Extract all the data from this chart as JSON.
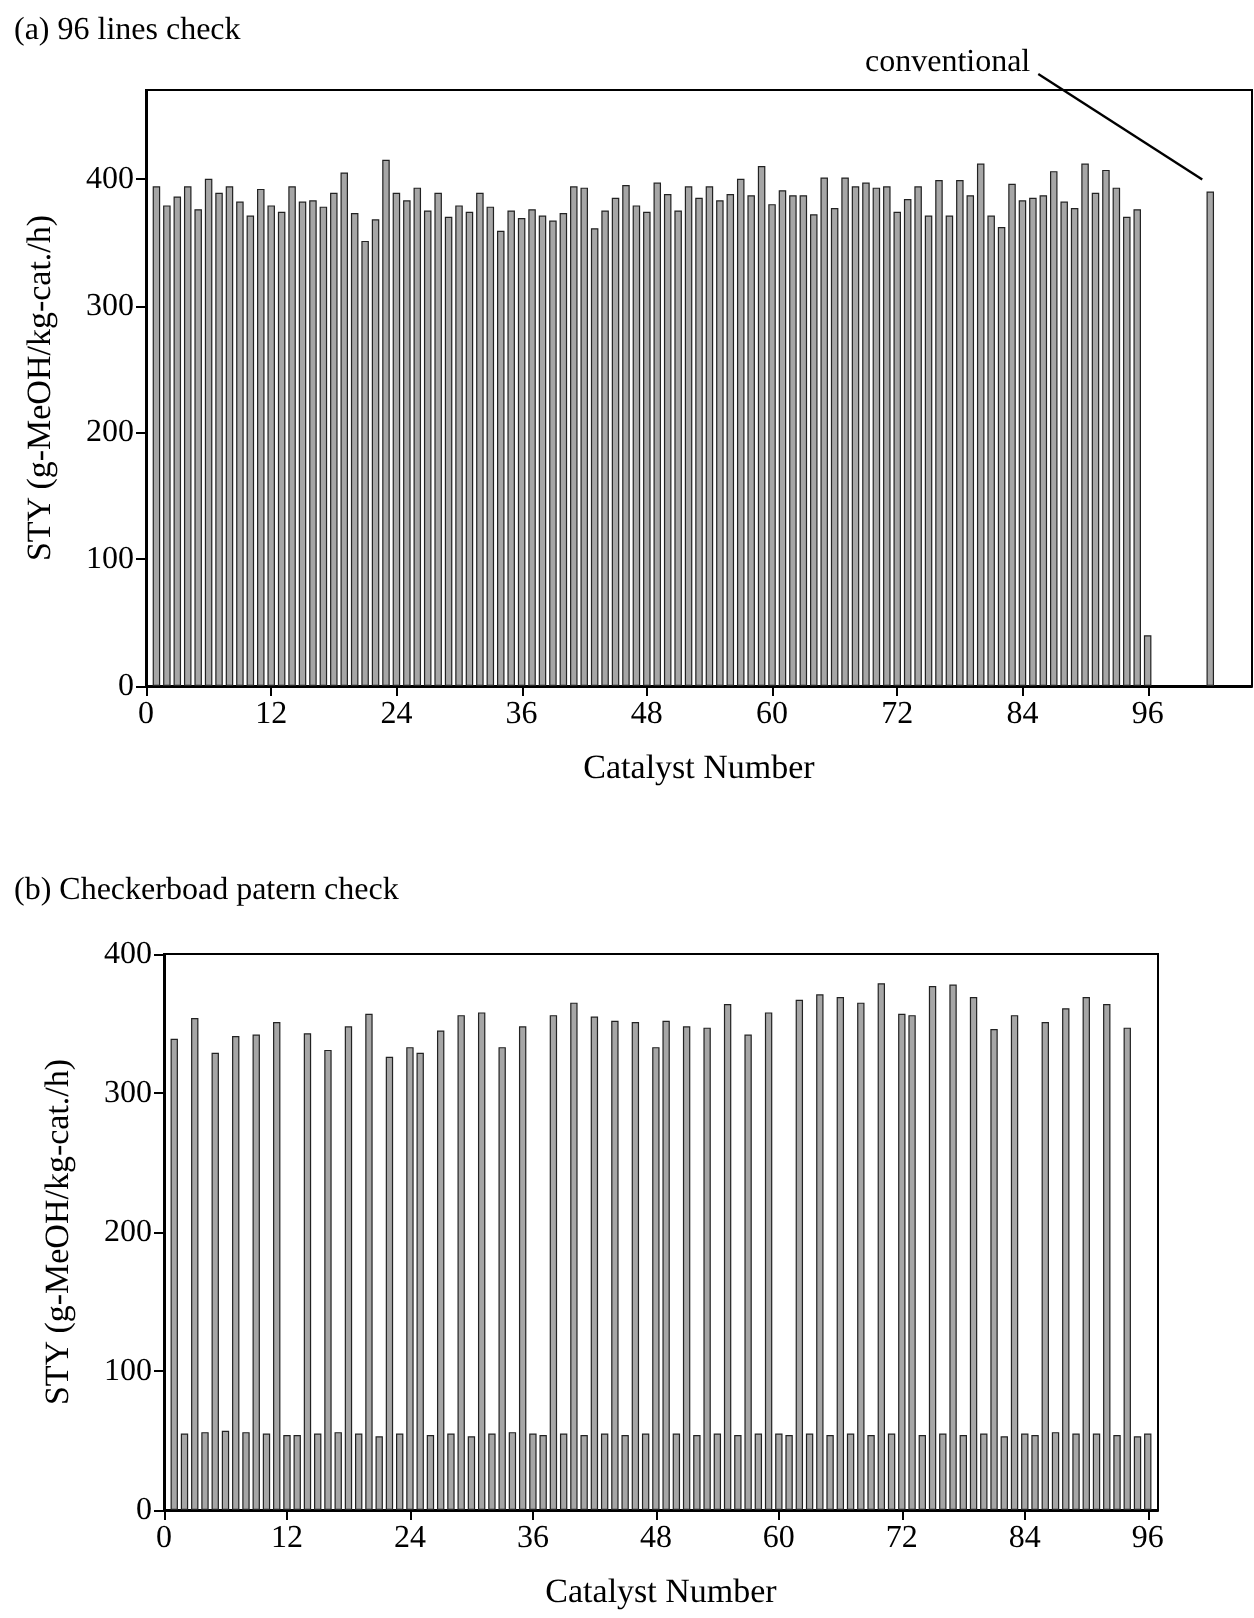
{
  "chart_data": [
    {
      "type": "bar",
      "title": "(a) 96 lines check",
      "xlabel": "Catalyst Number",
      "ylabel": "STY (g-MeOH/kg-cat./h)",
      "x": [
        1,
        2,
        3,
        4,
        5,
        6,
        7,
        8,
        9,
        10,
        11,
        12,
        13,
        14,
        15,
        16,
        17,
        18,
        19,
        20,
        21,
        22,
        23,
        24,
        25,
        26,
        27,
        28,
        29,
        30,
        31,
        32,
        33,
        34,
        35,
        36,
        37,
        38,
        39,
        40,
        41,
        42,
        43,
        44,
        45,
        46,
        47,
        48,
        49,
        50,
        51,
        52,
        53,
        54,
        55,
        56,
        57,
        58,
        59,
        60,
        61,
        62,
        63,
        64,
        65,
        66,
        67,
        68,
        69,
        70,
        71,
        72,
        73,
        74,
        75,
        76,
        77,
        78,
        79,
        80,
        81,
        82,
        83,
        84,
        85,
        86,
        87,
        88,
        89,
        90,
        91,
        92,
        93,
        94,
        95,
        96,
        102
      ],
      "values": [
        394,
        379,
        386,
        394,
        376,
        400,
        389,
        394,
        382,
        371,
        392,
        379,
        374,
        394,
        382,
        383,
        378,
        389,
        405,
        373,
        351,
        368,
        415,
        389,
        383,
        393,
        375,
        389,
        370,
        379,
        374,
        389,
        378,
        359,
        375,
        369,
        376,
        371,
        367,
        373,
        394,
        393,
        361,
        375,
        385,
        395,
        379,
        374,
        397,
        388,
        375,
        394,
        385,
        394,
        383,
        388,
        400,
        387,
        410,
        380,
        391,
        387,
        387,
        372,
        401,
        377,
        401,
        394,
        397,
        393,
        394,
        374,
        384,
        394,
        371,
        399,
        371,
        399,
        387,
        412,
        371,
        362,
        396,
        383,
        385,
        387,
        406,
        382,
        377,
        412,
        389,
        407,
        393,
        370,
        376,
        40,
        390
      ],
      "color": "#a6a6a6",
      "xlim": [
        0,
        106
      ],
      "xticks": [
        0,
        12,
        24,
        36,
        48,
        60,
        72,
        84,
        96
      ],
      "ylim": [
        0,
        470
      ],
      "yticks": [
        0,
        100,
        200,
        300,
        400
      ],
      "annotations": [
        {
          "text": "conventional",
          "x": 102,
          "y": 390
        }
      ]
    },
    {
      "type": "bar",
      "title": "(b) Checkerboad patern check",
      "xlabel": "Catalyst Number",
      "ylabel": "STY (g-MeOH/kg-cat./h)",
      "x": [
        1,
        2,
        3,
        4,
        5,
        6,
        7,
        8,
        9,
        10,
        11,
        12,
        13,
        14,
        15,
        16,
        17,
        18,
        19,
        20,
        21,
        22,
        23,
        24,
        25,
        26,
        27,
        28,
        29,
        30,
        31,
        32,
        33,
        34,
        35,
        36,
        37,
        38,
        39,
        40,
        41,
        42,
        43,
        44,
        45,
        46,
        47,
        48,
        49,
        50,
        51,
        52,
        53,
        54,
        55,
        56,
        57,
        58,
        59,
        60,
        61,
        62,
        63,
        64,
        65,
        66,
        67,
        68,
        69,
        70,
        71,
        72,
        73,
        74,
        75,
        76,
        77,
        78,
        79,
        80,
        81,
        82,
        83,
        84,
        85,
        86,
        87,
        88,
        89,
        90,
        91,
        92,
        93,
        94,
        95,
        96
      ],
      "values": [
        339,
        55,
        354,
        56,
        329,
        57,
        341,
        56,
        342,
        55,
        351,
        54,
        54,
        343,
        55,
        331,
        56,
        348,
        55,
        357,
        53,
        326,
        55,
        333,
        329,
        54,
        345,
        55,
        356,
        53,
        358,
        55,
        333,
        56,
        348,
        55,
        54,
        356,
        55,
        365,
        54,
        355,
        55,
        352,
        54,
        351,
        55,
        333,
        352,
        55,
        348,
        54,
        347,
        55,
        364,
        54,
        342,
        55,
        358,
        55,
        54,
        367,
        55,
        371,
        54,
        369,
        55,
        365,
        54,
        379,
        55,
        357,
        356,
        54,
        377,
        55,
        378,
        54,
        369,
        55,
        346,
        53,
        356,
        55,
        54,
        351,
        56,
        361,
        55,
        369,
        55,
        364,
        54,
        347,
        53,
        55
      ],
      "color": "#a6a6a6",
      "xlim": [
        0,
        97
      ],
      "xticks": [
        0,
        12,
        24,
        36,
        48,
        60,
        72,
        84,
        96
      ],
      "ylim": [
        0,
        400
      ],
      "yticks": [
        0,
        100,
        200,
        300,
        400
      ]
    }
  ]
}
